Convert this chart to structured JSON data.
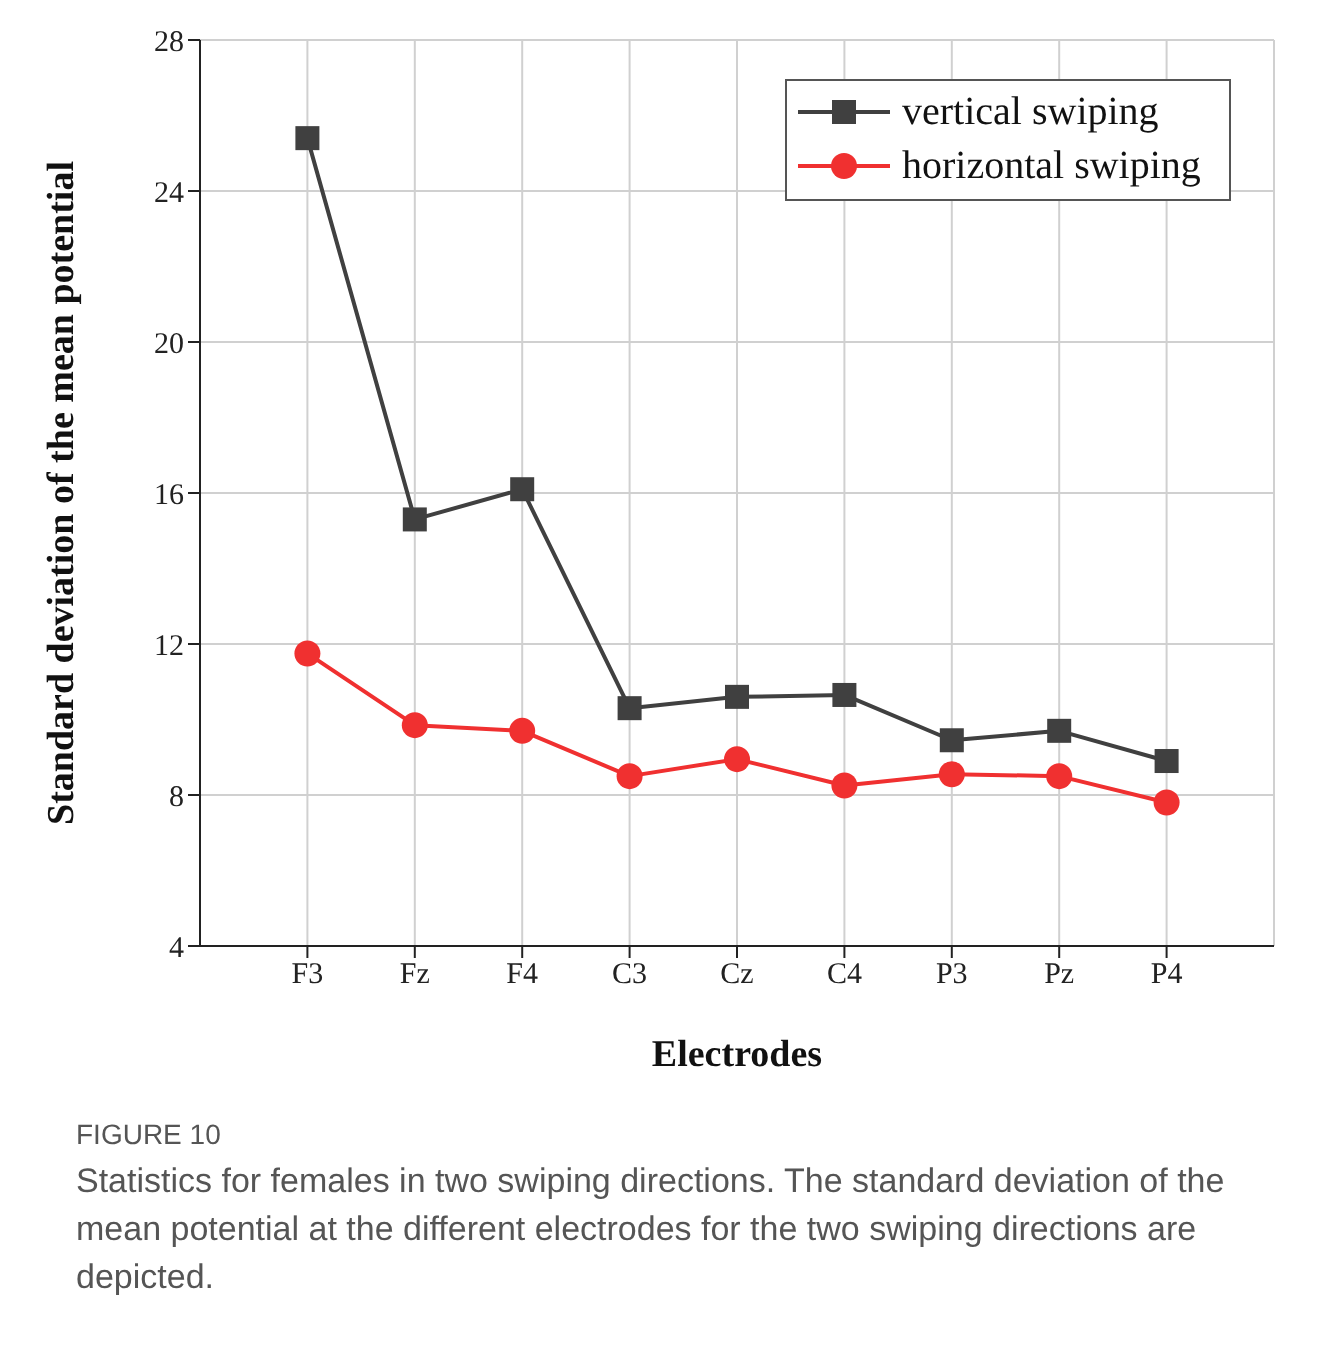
{
  "chart_data": {
    "type": "line",
    "xlabel": "Electrodes",
    "ylabel": "Standard deviation of the mean potential",
    "categories": [
      "F3",
      "Fz",
      "F4",
      "C3",
      "Cz",
      "C4",
      "P3",
      "Pz",
      "P4"
    ],
    "series": [
      {
        "name": "vertical swiping",
        "color": "#404040",
        "marker": "square",
        "values": [
          25.4,
          15.3,
          16.1,
          10.3,
          10.6,
          10.65,
          9.45,
          9.7,
          8.9
        ]
      },
      {
        "name": "horizontal swiping",
        "color": "#f03030",
        "marker": "circle",
        "values": [
          11.75,
          9.85,
          9.7,
          8.5,
          8.95,
          8.25,
          8.55,
          8.5,
          7.8
        ]
      }
    ],
    "ylim": [
      4,
      28
    ],
    "yticks": [
      4,
      8,
      12,
      16,
      20,
      24,
      28
    ],
    "grid": true,
    "legend": "top right",
    "annotations": [
      "FIGURE 10",
      "Statistics for females in two swiping directions. The standard deviation of the mean potential at the different electrodes for the two swiping directions are depicted."
    ]
  }
}
